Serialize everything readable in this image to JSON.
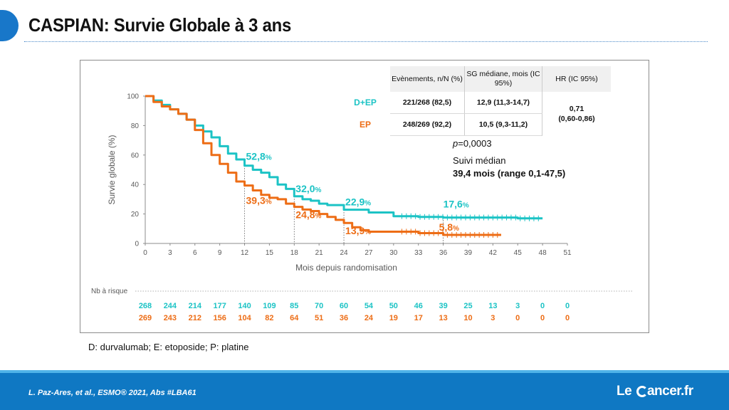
{
  "title": "CASPIAN: Survie Globale à 3 ans",
  "footnote": "D: durvalumab; E: etoposide; P: platine",
  "citation": "L. Paz-Ares, et al.,  ESMO® 2021, Abs #LBA61",
  "logo": {
    "prefix": "Le",
    "suffix": "ancer.fr"
  },
  "colors": {
    "de_ep": "#1cc3c5",
    "ep": "#ed6d16",
    "brand_blue": "#0f78c3"
  },
  "table": {
    "headers": [
      "Evènements, n/N (%)",
      "SG médiane, mois (IC 95%)",
      "HR (IC 95%)"
    ],
    "rows": [
      {
        "label": "D+EP",
        "events": "221/268 (82,5)",
        "median": "12,9 (11,3-14,7)"
      },
      {
        "label": "EP",
        "events": "248/269 (92,2)",
        "median": "10,5 (9,3-11,2)"
      }
    ],
    "hr_value": "0,71",
    "hr_ci": "(0,60-0,86)"
  },
  "pvalue_prefix": "p",
  "pvalue_rest": "=0,0003",
  "suivi_label": "Suivi médian",
  "suivi_value": "39,4 mois (range 0,1-47,5)",
  "chart_data": {
    "type": "line",
    "xlabel": "Mois depuis randomisation",
    "ylabel": "Survie globale (%)",
    "xlim": [
      0,
      51
    ],
    "ylim": [
      0,
      100
    ],
    "xticks": [
      0,
      3,
      6,
      9,
      12,
      15,
      18,
      21,
      24,
      27,
      30,
      33,
      36,
      39,
      42,
      45,
      48,
      51
    ],
    "yticks": [
      0,
      20,
      40,
      60,
      80,
      100
    ],
    "series": [
      {
        "name": "D+EP",
        "color": "#1cc3c5",
        "x": [
          0,
          1,
          2,
          3,
          4,
          5,
          6,
          7,
          8,
          9,
          10,
          11,
          12,
          13,
          14,
          15,
          16,
          17,
          18,
          19,
          20,
          21,
          22,
          24,
          27,
          30,
          33,
          36,
          39,
          42,
          45,
          48
        ],
        "y": [
          100,
          97,
          94,
          91,
          88,
          84,
          80,
          76,
          72,
          66,
          61,
          57,
          52.8,
          50,
          48,
          45,
          40,
          37,
          32,
          30,
          29,
          27,
          26,
          22.9,
          21,
          18.5,
          18,
          17.6,
          17.6,
          17.6,
          17,
          17
        ]
      },
      {
        "name": "EP",
        "color": "#ed6d16",
        "x": [
          0,
          1,
          2,
          3,
          4,
          5,
          6,
          7,
          8,
          9,
          10,
          11,
          12,
          13,
          14,
          15,
          16,
          17,
          18,
          19,
          20,
          21,
          22,
          23,
          24,
          25,
          26,
          27,
          30,
          33,
          36,
          39,
          42,
          43
        ],
        "y": [
          100,
          96,
          93,
          91,
          88,
          84,
          77,
          68,
          60,
          54,
          48,
          42,
          39.3,
          36,
          33,
          31,
          30,
          27,
          24.8,
          23,
          22,
          20,
          18,
          16,
          13.9,
          11,
          9,
          8,
          8,
          7,
          5.8,
          5.8,
          5.8,
          5.8
        ]
      }
    ],
    "annotations": [
      {
        "x": 12,
        "series": "D+EP",
        "label": "52,8",
        "unit": "%"
      },
      {
        "x": 12,
        "series": "EP",
        "label": "39,3",
        "unit": "%"
      },
      {
        "x": 18,
        "series": "D+EP",
        "label": "32,0",
        "unit": "%"
      },
      {
        "x": 18,
        "series": "EP",
        "label": "24,8",
        "unit": "%"
      },
      {
        "x": 24,
        "series": "D+EP",
        "label": "22,9",
        "unit": "%"
      },
      {
        "x": 24,
        "series": "EP",
        "label": "13,9",
        "unit": "%"
      },
      {
        "x": 36,
        "series": "D+EP",
        "label": "17,6",
        "unit": "%"
      },
      {
        "x": 36,
        "series": "EP",
        "label": "5,8",
        "unit": "%"
      }
    ],
    "at_risk": {
      "label": "Nb à risque",
      "de_ep": [
        268,
        244,
        214,
        177,
        140,
        109,
        85,
        70,
        60,
        54,
        50,
        46,
        39,
        25,
        13,
        3,
        0,
        0
      ],
      "ep": [
        269,
        243,
        212,
        156,
        104,
        82,
        64,
        51,
        36,
        24,
        19,
        17,
        13,
        10,
        3,
        0,
        0,
        0
      ]
    }
  }
}
